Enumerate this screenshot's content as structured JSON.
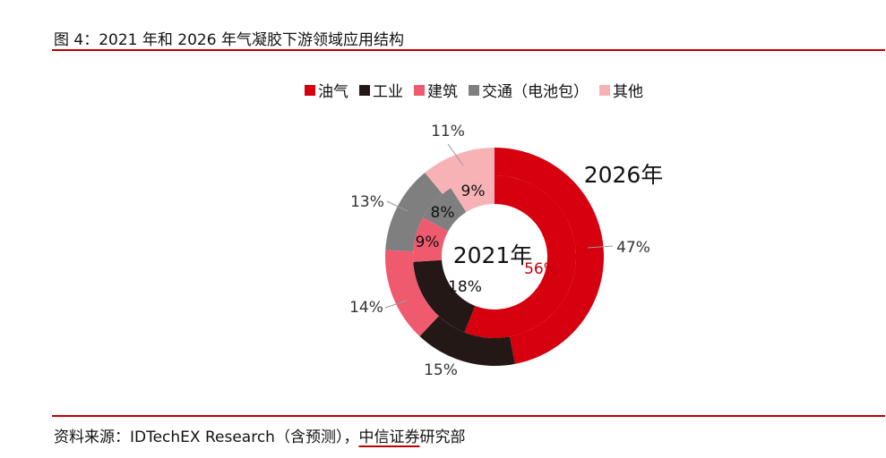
{
  "figure_title": "图 4：2021 年和 2026 年气凝胶下游领域应用结构",
  "source": {
    "prefix": "资料来源：IDTechEX Research（含预测），",
    "brand": "中信证券",
    "suffix": "研究部"
  },
  "chart_data": {
    "type": "donut",
    "categories": [
      "油气",
      "工业",
      "建筑",
      "交通（电池包）",
      "其他"
    ],
    "colors": [
      "#d7000f",
      "#231815",
      "#f05a6e",
      "#7f7f7f",
      "#f7b2b6"
    ],
    "series": [
      {
        "name": "2021年",
        "ring": "inner",
        "values": [
          56,
          18,
          9,
          8,
          9
        ],
        "labels": [
          "56%",
          "18%",
          "9%",
          "8%",
          "9%"
        ]
      },
      {
        "name": "2026年",
        "ring": "outer",
        "values": [
          47,
          15,
          14,
          13,
          11
        ],
        "labels": [
          "47%",
          "15%",
          "14%",
          "13%",
          "11%"
        ]
      }
    ]
  }
}
